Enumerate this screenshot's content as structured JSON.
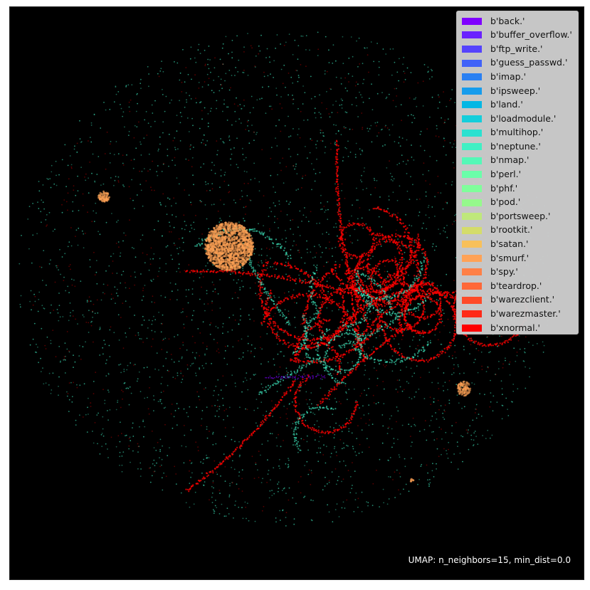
{
  "chart_data": {
    "type": "scatter",
    "title": "",
    "xlabel": "",
    "ylabel": "",
    "grid": false,
    "axes_visible": false,
    "background_color": "#000000",
    "legend_placement": "top-right",
    "annotation": "UMAP: n_neighbors=15, min_dist=0.0",
    "series": [
      {
        "name": "b'back.'",
        "color": "#7f00ff"
      },
      {
        "name": "b'buffer_overflow.'",
        "color": "#6a22fe"
      },
      {
        "name": "b'ftp_write.'",
        "color": "#5543fc"
      },
      {
        "name": "b'guess_passwd.'",
        "color": "#4062f8"
      },
      {
        "name": "b'imap.'",
        "color": "#2a80f2"
      },
      {
        "name": "b'ipsweep.'",
        "color": "#169cec"
      },
      {
        "name": "b'land.'",
        "color": "#02b7e4"
      },
      {
        "name": "b'loadmodule.'",
        "color": "#14cedb"
      },
      {
        "name": "b'multihop.'",
        "color": "#2ae1d0"
      },
      {
        "name": "b'neptune.'",
        "color": "#40f0c4"
      },
      {
        "name": "b'nmap.'",
        "color": "#55f8b7"
      },
      {
        "name": "b'perl.'",
        "color": "#6afea9"
      },
      {
        "name": "b'phf.'",
        "color": "#80fe9b"
      },
      {
        "name": "b'pod.'",
        "color": "#95f98c"
      },
      {
        "name": "b'portsweep.'",
        "color": "#bfe87b"
      },
      {
        "name": "b'rootkit.'",
        "color": "#d4dc6a"
      },
      {
        "name": "b'satan.'",
        "color": "#f8c05a"
      },
      {
        "name": "b'smurf.'",
        "color": "#ffa256"
      },
      {
        "name": "b'spy.'",
        "color": "#ff8046"
      },
      {
        "name": "b'teardrop.'",
        "color": "#ff6838"
      },
      {
        "name": "b'warezclient.'",
        "color": "#ff4a28"
      },
      {
        "name": "b'warezmaster.'",
        "color": "#ff2a18"
      },
      {
        "name": "b'xnormal.'",
        "color": "#ff0000"
      }
    ]
  }
}
